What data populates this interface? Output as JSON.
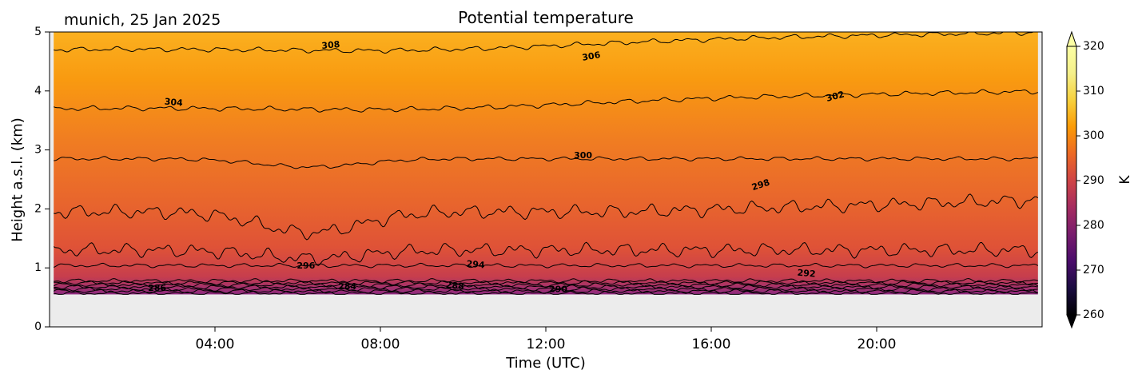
{
  "header": {
    "location_date": "munich, 25 Jan 2025"
  },
  "chart_data": {
    "type": "heatmap",
    "subtype": "filled contour with labelled contour lines",
    "title": "Potential temperature",
    "xlabel": "Time (UTC)",
    "ylabel": "Height a.s.l. (km)",
    "colorbar_label": "K",
    "colormap": "inferno",
    "missing_data_color": "#ececec",
    "x_range_hours": [
      0,
      24
    ],
    "x_ticks": [
      {
        "hour": 4,
        "label": "04:00"
      },
      {
        "hour": 8,
        "label": "08:00"
      },
      {
        "hour": 12,
        "label": "12:00"
      },
      {
        "hour": 16,
        "label": "16:00"
      },
      {
        "hour": 20,
        "label": "20:00"
      }
    ],
    "y_range_km": [
      0,
      5
    ],
    "y_ticks": [
      "0",
      "1",
      "2",
      "3",
      "4",
      "5"
    ],
    "data_bottom_km": 0.55,
    "colorbar_range_K": [
      260,
      320
    ],
    "colorbar_ticks": [
      "260",
      "270",
      "280",
      "290",
      "300",
      "310",
      "320"
    ],
    "colorbar_extend": "both",
    "contour_levels_K": [
      280,
      282,
      284,
      286,
      288,
      290,
      292,
      294,
      296,
      298,
      300,
      302,
      304,
      306,
      308
    ],
    "contour_labels": [
      {
        "text": "308",
        "hour": 6.8,
        "km": 4.77,
        "angle": -5
      },
      {
        "text": "306",
        "hour": 13.1,
        "km": 4.58,
        "angle": -10
      },
      {
        "text": "304",
        "hour": 3.0,
        "km": 3.8,
        "angle": 5
      },
      {
        "text": "302",
        "hour": 19.0,
        "km": 3.9,
        "angle": -15
      },
      {
        "text": "300",
        "hour": 12.9,
        "km": 2.9,
        "angle": 0
      },
      {
        "text": "298",
        "hour": 17.2,
        "km": 2.4,
        "angle": -18
      },
      {
        "text": "296",
        "hour": 6.2,
        "km": 1.03,
        "angle": 0
      },
      {
        "text": "294",
        "hour": 10.3,
        "km": 1.05,
        "angle": 5
      },
      {
        "text": "292",
        "hour": 18.3,
        "km": 0.9,
        "angle": 5
      },
      {
        "text": "290",
        "hour": 12.3,
        "km": 0.63,
        "angle": 0
      },
      {
        "text": "288",
        "hour": 9.8,
        "km": 0.69,
        "angle": 5
      },
      {
        "text": "286",
        "hour": 2.6,
        "km": 0.65,
        "angle": 0
      },
      {
        "text": "284",
        "hour": 7.2,
        "km": 0.68,
        "angle": 0
      }
    ],
    "grid": false
  }
}
